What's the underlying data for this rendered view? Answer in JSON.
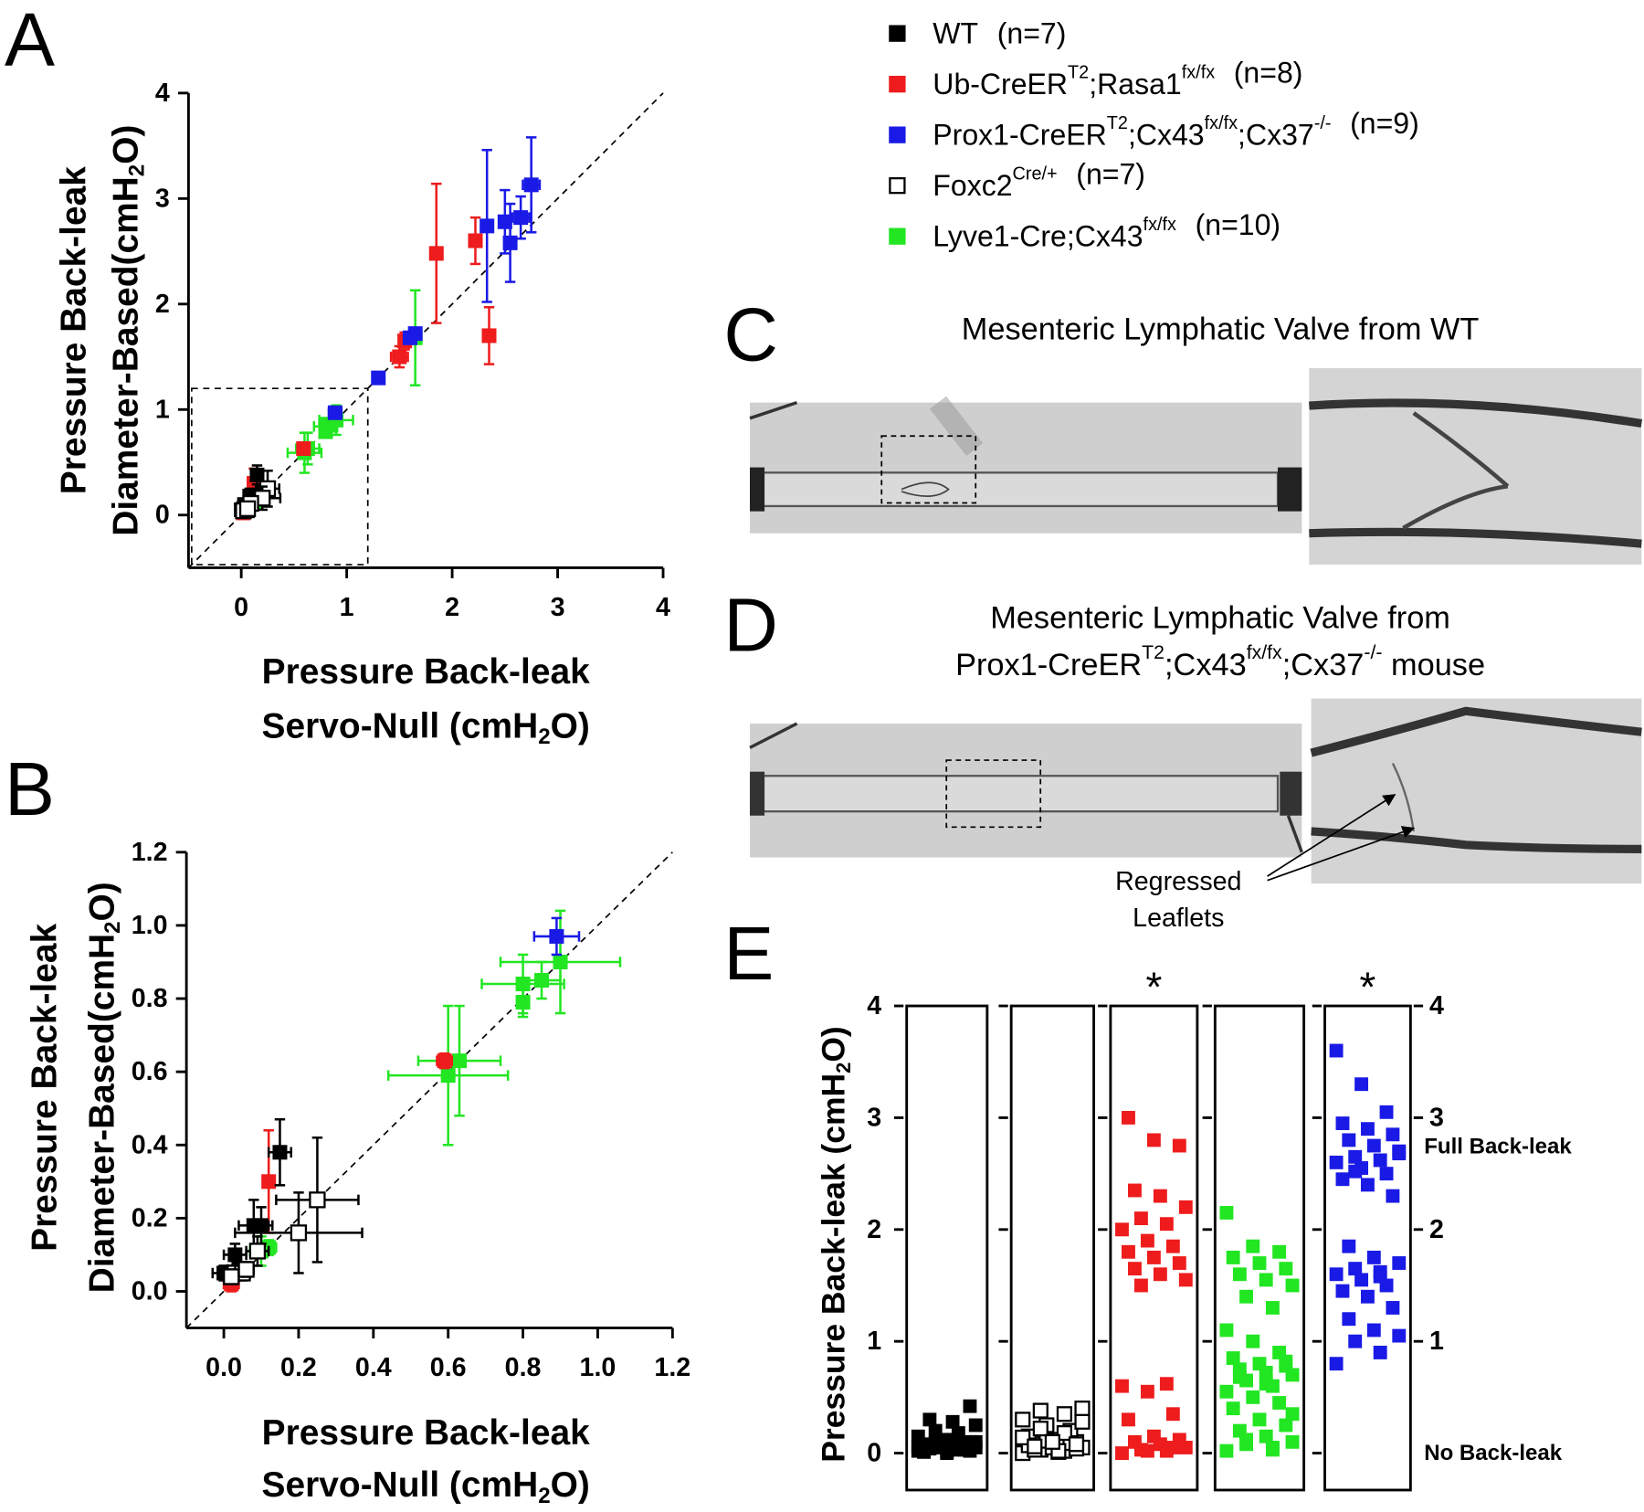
{
  "legend": [
    {
      "label": [
        "WT"
      ],
      "n": "(n=7)",
      "color": "#000000",
      "marker": "filled"
    },
    {
      "label": [
        "Ub-CreER",
        "T2",
        ";Rasa1",
        "fx/fx"
      ],
      "n": "(n=8)",
      "color": "#ee1c1c",
      "marker": "filled"
    },
    {
      "label": [
        "Prox1-CreER",
        "T2",
        ";Cx43",
        "fx/fx",
        ";Cx37",
        "-/-"
      ],
      "n": "(n=9)",
      "color": "#1a1ae6",
      "marker": "filled"
    },
    {
      "label": [
        "Foxc2",
        "Cre/+"
      ],
      "n": "(n=7)",
      "color": "#000000",
      "marker": "open"
    },
    {
      "label": [
        "Lyve1-Cre;Cx43",
        "fx/fx"
      ],
      "n": "(n=10)",
      "color": "#22e622",
      "marker": "filled"
    }
  ],
  "images": [
    {
      "label": "C",
      "title": [
        [
          "Mesenteric Lymphatic Valve from WT"
        ]
      ]
    },
    {
      "label": "D",
      "title": [
        [
          "Mesenteric Lymphatic Valve from"
        ],
        [
          "Prox1-CreER",
          "T2",
          ";Cx43",
          "fx/fx",
          ";Cx37",
          "-/-",
          " mouse"
        ]
      ],
      "annotation": [
        "Regressed",
        "Leaflets"
      ]
    }
  ],
  "chart_data": [
    {
      "type": "scatter",
      "panel": "A",
      "xlabel": [
        [
          "Pressure Back-leak"
        ],
        [
          "Servo-Null (cmH",
          "2",
          "O)"
        ]
      ],
      "ylabel": [
        [
          "Pressure Back-leak"
        ],
        [
          "Diameter-Based(cmH",
          "2",
          "O)"
        ]
      ],
      "xlim": [
        -0.5,
        4
      ],
      "ylim": [
        -0.5,
        4
      ],
      "xticks": [
        0,
        1,
        2,
        3,
        4
      ],
      "yticks": [
        0,
        1,
        2,
        3,
        4
      ],
      "identity_line": true,
      "zoom_box": true,
      "series": [
        {
          "color": "#22e622",
          "marker": "filled",
          "x": [
            0.1,
            0.6,
            0.63,
            0.8,
            0.8,
            0.9,
            1.65,
            0.12,
            0.05,
            0.85
          ],
          "values": [
            0.11,
            0.59,
            0.63,
            0.84,
            0.79,
            0.9,
            1.68,
            0.12,
            0.06,
            0.85
          ],
          "xerr": [
            0.03,
            0.16,
            0.11,
            0.11,
            0.01,
            0.16,
            0.03,
            0.02,
            0.02,
            0.05
          ],
          "yerr": [
            0.04,
            0.19,
            0.15,
            0.08,
            0.04,
            0.14,
            0.45,
            0.02,
            0.02,
            0.05
          ]
        },
        {
          "color": "#ee1c1c",
          "marker": "filled",
          "x": [
            0.02,
            0.12,
            0.59,
            1.5,
            1.55,
            1.85,
            2.22,
            2.35
          ],
          "values": [
            0.02,
            0.3,
            0.63,
            1.5,
            1.65,
            2.48,
            2.6,
            1.7
          ],
          "xerr": [
            0.02,
            0.01,
            0.02,
            0.08,
            0.05,
            0.02,
            0.05,
            0.01
          ],
          "yerr": [
            0.02,
            0.14,
            0.02,
            0.1,
            0.08,
            0.66,
            0.22,
            0.27
          ]
        },
        {
          "color": "#1a1ae6",
          "marker": "filled",
          "x": [
            0.89,
            1.3,
            1.6,
            1.65,
            2.33,
            2.5,
            2.55,
            2.65,
            2.75
          ],
          "values": [
            0.97,
            1.3,
            1.68,
            1.72,
            2.74,
            2.78,
            2.58,
            2.82,
            3.13
          ],
          "xerr": [
            0.06,
            0.05,
            0.05,
            0.03,
            0.05,
            0.05,
            0.05,
            0.08,
            0.08
          ],
          "yerr": [
            0.05,
            0.02,
            0.05,
            0.05,
            0.72,
            0.3,
            0.37,
            0.2,
            0.45
          ]
        },
        {
          "color": "#000000",
          "marker": "filled",
          "x": [
            0.0,
            0.02,
            0.04,
            0.03,
            0.08,
            0.1,
            0.15
          ],
          "values": [
            0.05,
            0.05,
            0.06,
            0.1,
            0.18,
            0.18,
            0.38
          ],
          "xerr": [
            0.03,
            0.02,
            0.03,
            0.03,
            0.04,
            0.03,
            0.03
          ],
          "yerr": [
            0.02,
            0.02,
            0.02,
            0.03,
            0.07,
            0.05,
            0.09
          ]
        },
        {
          "color": "#000000",
          "marker": "open",
          "x": [
            0.25,
            0.2,
            0.09,
            0.03,
            0.05,
            0.02,
            0.06
          ],
          "values": [
            0.25,
            0.16,
            0.11,
            0.05,
            0.05,
            0.04,
            0.06
          ],
          "xerr": [
            0.11,
            0.17,
            0.03,
            0.02,
            0.02,
            0.02,
            0.02
          ],
          "yerr": [
            0.17,
            0.11,
            0.04,
            0.02,
            0.02,
            0.02,
            0.02
          ]
        }
      ]
    },
    {
      "type": "scatter",
      "panel": "B",
      "xlabel": [
        [
          "Pressure Back-leak"
        ],
        [
          "Servo-Null (cmH",
          "2",
          "O)"
        ]
      ],
      "ylabel": [
        [
          "Pressure Back-leak"
        ],
        [
          "Diameter-Based(cmH",
          "2",
          "O)"
        ]
      ],
      "xlim": [
        -0.1,
        1.2
      ],
      "ylim": [
        -0.1,
        1.2
      ],
      "xticks": [
        {
          "value": 0,
          "label": "0.0"
        },
        0.2,
        0.4,
        0.6,
        0.8,
        {
          "value": 1,
          "label": "1.0"
        },
        1.2
      ],
      "yticks": [
        {
          "value": 0,
          "label": "0.0"
        },
        0.2,
        0.4,
        0.6,
        0.8,
        {
          "value": 1,
          "label": "1.0"
        },
        1.2
      ],
      "identity_line": true,
      "series": [
        {
          "color": "#22e622",
          "marker": "filled",
          "x": [
            0.1,
            0.6,
            0.63,
            0.8,
            0.8,
            0.9,
            0.12,
            0.05,
            0.85
          ],
          "values": [
            0.11,
            0.59,
            0.63,
            0.84,
            0.79,
            0.9,
            0.12,
            0.06,
            0.85
          ],
          "xerr": [
            0.03,
            0.16,
            0.11,
            0.11,
            0.01,
            0.16,
            0.02,
            0.02,
            0.05
          ],
          "yerr": [
            0.04,
            0.19,
            0.15,
            0.08,
            0.04,
            0.14,
            0.02,
            0.02,
            0.05
          ]
        },
        {
          "color": "#ee1c1c",
          "marker": "filled",
          "x": [
            0.02,
            0.12,
            0.59
          ],
          "values": [
            0.02,
            0.3,
            0.63
          ],
          "xerr": [
            0.02,
            0.01,
            0.02
          ],
          "yerr": [
            0.02,
            0.14,
            0.02
          ]
        },
        {
          "color": "#1a1ae6",
          "marker": "filled",
          "x": [
            0.89
          ],
          "values": [
            0.97
          ],
          "xerr": [
            0.06
          ],
          "yerr": [
            0.05
          ]
        },
        {
          "color": "#000000",
          "marker": "filled",
          "x": [
            0.0,
            0.02,
            0.04,
            0.03,
            0.08,
            0.1,
            0.15
          ],
          "values": [
            0.05,
            0.05,
            0.06,
            0.1,
            0.18,
            0.18,
            0.38
          ],
          "xerr": [
            0.03,
            0.02,
            0.03,
            0.03,
            0.04,
            0.03,
            0.03
          ],
          "yerr": [
            0.02,
            0.02,
            0.02,
            0.03,
            0.07,
            0.05,
            0.09
          ]
        },
        {
          "color": "#000000",
          "marker": "open",
          "x": [
            0.25,
            0.2,
            0.09,
            0.03,
            0.05,
            0.02,
            0.06
          ],
          "values": [
            0.25,
            0.16,
            0.11,
            0.05,
            0.05,
            0.04,
            0.06
          ],
          "xerr": [
            0.11,
            0.17,
            0.03,
            0.02,
            0.02,
            0.02,
            0.02
          ],
          "yerr": [
            0.17,
            0.11,
            0.04,
            0.02,
            0.02,
            0.02,
            0.02
          ]
        }
      ]
    },
    {
      "type": "strip",
      "panel": "E",
      "ylabel": [
        [
          "Pressure Back-leak (cmH",
          "2",
          "O)"
        ]
      ],
      "ylim": [
        -0.33,
        4
      ],
      "yticks": [
        0,
        1,
        2,
        3,
        4
      ],
      "y2lim": [
        -0.33,
        4
      ],
      "y2ticks": [
        1,
        2,
        3,
        4
      ],
      "reference_labels": [
        {
          "value": 2.74,
          "label": "Full Back-leak"
        },
        {
          "value": 0,
          "label": "No Back-leak"
        }
      ],
      "series": [
        {
          "color": "#000000",
          "marker": "filled",
          "values": [
            0.02,
            0.03,
            0.05,
            0.05,
            0.06,
            0.08,
            0.1,
            0.02,
            0.04,
            0.07,
            0.12,
            0.15,
            0.18,
            0.2,
            0.25,
            0.28,
            0.3,
            0.42,
            0.0,
            0.01,
            0.03,
            0.05,
            0.06,
            0.08,
            0.09,
            0.1,
            0.12,
            0.04,
            0.02,
            0.07
          ]
        },
        {
          "color": "#000000",
          "marker": "open",
          "values": [
            0.0,
            0.02,
            0.03,
            0.05,
            0.06,
            0.08,
            0.1,
            0.12,
            0.15,
            0.2,
            0.25,
            0.3,
            0.35,
            0.38,
            0.4,
            0.01,
            0.03,
            0.04,
            0.05,
            0.07,
            0.09,
            0.11,
            0.14,
            0.18,
            0.22,
            0.28,
            0.02,
            0.06,
            0.08,
            0.1
          ]
        },
        {
          "color": "#ee1c1c",
          "marker": "filled",
          "label": "*",
          "values": [
            0.0,
            0.02,
            0.03,
            0.05,
            0.08,
            0.1,
            0.12,
            0.15,
            0.3,
            0.35,
            0.55,
            0.6,
            0.62,
            1.5,
            1.55,
            1.6,
            1.65,
            1.7,
            1.75,
            1.8,
            1.85,
            1.9,
            2.0,
            2.05,
            2.1,
            2.2,
            2.3,
            2.35,
            2.75,
            2.8,
            3.0,
            0.05,
            0.02
          ]
        },
        {
          "color": "#22e622",
          "marker": "filled",
          "values": [
            0.02,
            0.05,
            0.08,
            0.1,
            0.15,
            0.2,
            0.25,
            0.3,
            0.4,
            0.45,
            0.5,
            0.55,
            0.6,
            0.65,
            0.7,
            0.72,
            0.75,
            0.78,
            0.8,
            0.85,
            0.9,
            1.0,
            1.1,
            1.3,
            1.4,
            1.5,
            1.55,
            1.6,
            1.65,
            1.7,
            1.75,
            1.8,
            1.85,
            2.15,
            0.03,
            0.12,
            0.35,
            0.62,
            0.68,
            0.82
          ]
        },
        {
          "color": "#1a1ae6",
          "marker": "filled",
          "label": "*",
          "values": [
            0.8,
            0.9,
            1.0,
            1.05,
            1.1,
            1.2,
            1.3,
            1.4,
            1.45,
            1.5,
            1.55,
            1.6,
            1.62,
            1.65,
            1.7,
            1.75,
            1.85,
            2.3,
            2.4,
            2.45,
            2.5,
            2.55,
            2.6,
            2.62,
            2.65,
            2.7,
            2.75,
            2.8,
            2.85,
            2.9,
            2.95,
            3.05,
            3.3,
            3.6,
            1.58,
            2.52,
            2.68
          ]
        }
      ]
    }
  ]
}
